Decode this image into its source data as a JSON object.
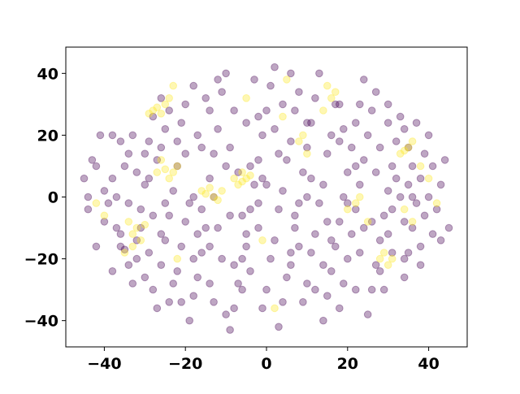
{
  "chart_data": {
    "type": "scatter",
    "title": "",
    "xlabel": "",
    "ylabel": "",
    "xlim": [
      -49.5,
      49.5
    ],
    "ylim": [
      -48.5,
      48.5
    ],
    "xticks": [
      -40,
      -20,
      0,
      20,
      40
    ],
    "yticks": [
      -40,
      -20,
      0,
      20,
      40
    ],
    "xtick_labels": [
      "−40",
      "−20",
      "0",
      "20",
      "40"
    ],
    "ytick_labels": [
      "−40",
      "−20",
      "0",
      "20",
      "40"
    ],
    "grid": false,
    "legend": "none",
    "marker_alpha": 0.35,
    "series": [
      {
        "color": "#440154",
        "points": [
          [
            -42,
            -16
          ],
          [
            -40,
            -8
          ],
          [
            -38,
            6
          ],
          [
            -37,
            0
          ],
          [
            -36,
            -12
          ],
          [
            -35,
            -17
          ],
          [
            -34,
            -22
          ],
          [
            -33,
            -28
          ],
          [
            -32,
            -14
          ],
          [
            -31,
            -4
          ],
          [
            -30,
            4
          ],
          [
            -29,
            18
          ],
          [
            -28,
            -30
          ],
          [
            -27,
            -36
          ],
          [
            -26,
            -22
          ],
          [
            -25,
            -14
          ],
          [
            -24,
            -6
          ],
          [
            -23,
            2
          ],
          [
            -22,
            10
          ],
          [
            -21,
            24
          ],
          [
            -20,
            30
          ],
          [
            -19,
            -40
          ],
          [
            -18,
            -32
          ],
          [
            -17,
            -26
          ],
          [
            -16,
            -18
          ],
          [
            -15,
            -10
          ],
          [
            -14,
            6
          ],
          [
            -13,
            14
          ],
          [
            -12,
            22
          ],
          [
            -11,
            34
          ],
          [
            -10,
            40
          ],
          [
            -9,
            -43
          ],
          [
            -8,
            -36
          ],
          [
            -7,
            -28
          ],
          [
            -6,
            -20
          ],
          [
            -5,
            -12
          ],
          [
            -4,
            -4
          ],
          [
            -3,
            4
          ],
          [
            -2,
            12
          ],
          [
            -1,
            20
          ],
          [
            0,
            28
          ],
          [
            1,
            36
          ],
          [
            2,
            42
          ],
          [
            3,
            -42
          ],
          [
            4,
            -34
          ],
          [
            5,
            -26
          ],
          [
            6,
            -18
          ],
          [
            7,
            -10
          ],
          [
            8,
            -2
          ],
          [
            9,
            8
          ],
          [
            10,
            16
          ],
          [
            11,
            24
          ],
          [
            12,
            32
          ],
          [
            13,
            40
          ],
          [
            14,
            -40
          ],
          [
            15,
            -32
          ],
          [
            16,
            -24
          ],
          [
            17,
            -16
          ],
          [
            18,
            -8
          ],
          [
            19,
            0
          ],
          [
            20,
            8
          ],
          [
            21,
            16
          ],
          [
            22,
            24
          ],
          [
            23,
            30
          ],
          [
            24,
            38
          ],
          [
            25,
            -38
          ],
          [
            26,
            -30
          ],
          [
            27,
            -22
          ],
          [
            28,
            -14
          ],
          [
            29,
            -6
          ],
          [
            30,
            2
          ],
          [
            31,
            10
          ],
          [
            32,
            18
          ],
          [
            33,
            26
          ],
          [
            34,
            -26
          ],
          [
            35,
            -18
          ],
          [
            36,
            -10
          ],
          [
            37,
            -2
          ],
          [
            38,
            6
          ],
          [
            39,
            14
          ],
          [
            40,
            20
          ],
          [
            41,
            -12
          ],
          [
            42,
            -4
          ],
          [
            43,
            4
          ],
          [
            44,
            12
          ],
          [
            45,
            -10
          ],
          [
            -45,
            6
          ],
          [
            -44,
            -4
          ],
          [
            -43,
            12
          ],
          [
            -41,
            20
          ],
          [
            -39,
            -2
          ],
          [
            -36,
            18
          ],
          [
            -34,
            14
          ],
          [
            -32,
            -20
          ],
          [
            -30,
            -26
          ],
          [
            -28,
            26
          ],
          [
            -26,
            32
          ],
          [
            -24,
            -34
          ],
          [
            -22,
            -24
          ],
          [
            -20,
            -8
          ],
          [
            -18,
            0
          ],
          [
            -16,
            16
          ],
          [
            -14,
            28
          ],
          [
            -12,
            38
          ],
          [
            -10,
            -38
          ],
          [
            -8,
            -22
          ],
          [
            -6,
            -6
          ],
          [
            -4,
            10
          ],
          [
            -2,
            26
          ],
          [
            0,
            -30
          ],
          [
            2,
            -14
          ],
          [
            4,
            2
          ],
          [
            6,
            18
          ],
          [
            8,
            34
          ],
          [
            10,
            -28
          ],
          [
            12,
            -12
          ],
          [
            14,
            4
          ],
          [
            16,
            20
          ],
          [
            18,
            30
          ],
          [
            20,
            -20
          ],
          [
            22,
            -4
          ],
          [
            24,
            12
          ],
          [
            26,
            28
          ],
          [
            28,
            -24
          ],
          [
            30,
            -12
          ],
          [
            32,
            6
          ],
          [
            34,
            22
          ],
          [
            36,
            10
          ],
          [
            38,
            -16
          ],
          [
            40,
            0
          ],
          [
            -38,
            -24
          ],
          [
            -35,
            10
          ],
          [
            -33,
            20
          ],
          [
            -31,
            -10
          ],
          [
            -29,
            -18
          ],
          [
            -27,
            12
          ],
          [
            -25,
            22
          ],
          [
            -23,
            -28
          ],
          [
            -21,
            -16
          ],
          [
            -19,
            -2
          ],
          [
            -17,
            20
          ],
          [
            -15,
            32
          ],
          [
            -13,
            -34
          ],
          [
            -11,
            -20
          ],
          [
            -9,
            -6
          ],
          [
            -7,
            8
          ],
          [
            -5,
            24
          ],
          [
            -3,
            38
          ],
          [
            -1,
            -36
          ],
          [
            1,
            -20
          ],
          [
            3,
            -4
          ],
          [
            5,
            12
          ],
          [
            7,
            28
          ],
          [
            9,
            -34
          ],
          [
            11,
            -18
          ],
          [
            13,
            -2
          ],
          [
            15,
            14
          ],
          [
            17,
            30
          ],
          [
            19,
            -28
          ],
          [
            21,
            -12
          ],
          [
            23,
            4
          ],
          [
            25,
            20
          ],
          [
            27,
            34
          ],
          [
            29,
            -30
          ],
          [
            31,
            -18
          ],
          [
            33,
            0
          ],
          [
            35,
            16
          ],
          [
            37,
            24
          ],
          [
            39,
            -6
          ],
          [
            41,
            10
          ],
          [
            -40,
            2
          ],
          [
            -37,
            -10
          ],
          [
            -34,
            -2
          ],
          [
            -30,
            14
          ],
          [
            -26,
            -12
          ],
          [
            -22,
            18
          ],
          [
            -18,
            -20
          ],
          [
            -14,
            -28
          ],
          [
            -10,
            10
          ],
          [
            -6,
            -30
          ],
          [
            -2,
            -10
          ],
          [
            2,
            22
          ],
          [
            6,
            -22
          ],
          [
            10,
            0
          ],
          [
            14,
            -22
          ],
          [
            18,
            18
          ],
          [
            22,
            -30
          ],
          [
            26,
            -8
          ],
          [
            30,
            24
          ],
          [
            34,
            -8
          ],
          [
            38,
            -22
          ],
          [
            -42,
            10
          ],
          [
            -29,
            6
          ],
          [
            -25,
            -2
          ],
          [
            -21,
            -34
          ],
          [
            -17,
            -12
          ],
          [
            -13,
            0
          ],
          [
            -9,
            16
          ],
          [
            -5,
            -16
          ],
          [
            -1,
            6
          ],
          [
            3,
            14
          ],
          [
            7,
            -6
          ],
          [
            11,
            6
          ],
          [
            15,
            -8
          ],
          [
            19,
            22
          ],
          [
            23,
            -18
          ],
          [
            27,
            8
          ],
          [
            31,
            -4
          ],
          [
            35,
            4
          ],
          [
            43,
            -14
          ],
          [
            -20,
            14
          ],
          [
            -8,
            28
          ],
          [
            4,
            30
          ],
          [
            16,
            -14
          ],
          [
            28,
            16
          ],
          [
            -28,
            -6
          ],
          [
            -16,
            -4
          ],
          [
            -4,
            -24
          ],
          [
            8,
            -16
          ],
          [
            20,
            -2
          ],
          [
            -36,
            -16
          ],
          [
            -32,
            8
          ],
          [
            -24,
            28
          ],
          [
            -12,
            -10
          ],
          [
            0,
            4
          ],
          [
            12,
            -30
          ],
          [
            24,
            -10
          ],
          [
            36,
            0
          ],
          [
            -44,
            0
          ],
          [
            -26,
            16
          ],
          [
            -14,
            -16
          ],
          [
            -2,
            -2
          ],
          [
            10,
            24
          ],
          [
            22,
            10
          ],
          [
            34,
            -20
          ],
          [
            -38,
            20
          ],
          [
            -18,
            36
          ],
          [
            6,
            40
          ],
          [
            18,
            -36
          ],
          [
            30,
            30
          ]
        ]
      },
      {
        "color": "#fde725",
        "points": [
          [
            -42,
            -2
          ],
          [
            -40,
            -6
          ],
          [
            -34,
            -8
          ],
          [
            -33,
            -12
          ],
          [
            -32,
            -10
          ],
          [
            -31,
            -14
          ],
          [
            -30,
            -9
          ],
          [
            -29,
            27
          ],
          [
            -28,
            28
          ],
          [
            -27,
            29
          ],
          [
            -26,
            27
          ],
          [
            -25,
            30
          ],
          [
            -24,
            32
          ],
          [
            -23,
            36
          ],
          [
            -26,
            12
          ],
          [
            -25,
            9
          ],
          [
            -24,
            6
          ],
          [
            -23,
            8
          ],
          [
            -22,
            10
          ],
          [
            -27,
            8
          ],
          [
            -16,
            2
          ],
          [
            -15,
            1
          ],
          [
            -14,
            3
          ],
          [
            -13,
            0
          ],
          [
            -12,
            -1
          ],
          [
            -11,
            2
          ],
          [
            -8,
            6
          ],
          [
            -7,
            4
          ],
          [
            -6,
            8
          ],
          [
            -5,
            6
          ],
          [
            -4,
            7
          ],
          [
            -6,
            5
          ],
          [
            -22,
            -20
          ],
          [
            -5,
            32
          ],
          [
            5,
            38
          ],
          [
            4,
            26
          ],
          [
            8,
            18
          ],
          [
            9,
            20
          ],
          [
            10,
            14
          ],
          [
            15,
            36
          ],
          [
            16,
            32
          ],
          [
            17,
            34
          ],
          [
            14,
            28
          ],
          [
            20,
            -4
          ],
          [
            23,
            0
          ],
          [
            22,
            -2
          ],
          [
            25,
            -8
          ],
          [
            28,
            -20
          ],
          [
            29,
            -18
          ],
          [
            30,
            -22
          ],
          [
            31,
            -20
          ],
          [
            34,
            15
          ],
          [
            35,
            16
          ],
          [
            36,
            18
          ],
          [
            33,
            14
          ],
          [
            38,
            10
          ],
          [
            40,
            6
          ],
          [
            42,
            -2
          ],
          [
            36,
            -8
          ],
          [
            34,
            -4
          ],
          [
            2,
            -36
          ],
          [
            -1,
            -14
          ],
          [
            -35,
            -18
          ],
          [
            -33,
            -16
          ]
        ]
      }
    ]
  }
}
